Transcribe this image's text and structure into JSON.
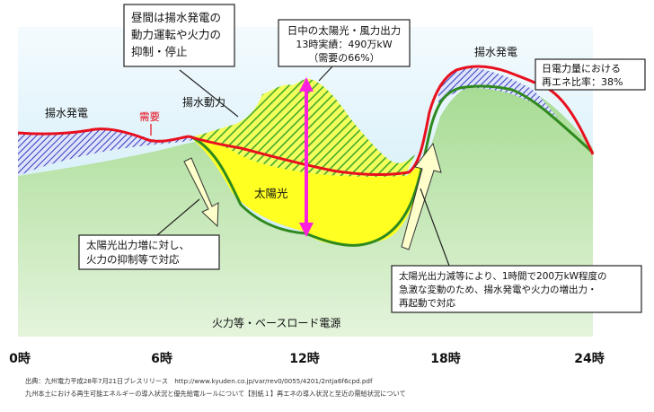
{
  "callouts": {
    "midday_pumped": {
      "lines": [
        "昼間は揚水発電の",
        "動力運転や火力の",
        "抑制・停止"
      ]
    },
    "solar_wind": {
      "lines": [
        "日中の太陽光・風力出力",
        "13時実績：490万kW",
        "（需要の66%）"
      ]
    },
    "daily_ratio": {
      "lines": [
        "日電力量における",
        "再エネ比率：38%"
      ]
    },
    "solar_increase": {
      "lines": [
        "太陽光出力増に対し、",
        "火力の抑制等で対応"
      ]
    },
    "solar_decrease": {
      "lines": [
        "太陽光出力減等により、1時間で200万kW程度の",
        "急激な変動のため、揚水発電や火力の増出力・",
        "再起動で対応"
      ]
    }
  },
  "labels": {
    "pumped_left": "揚水発電",
    "demand": "需要",
    "pumping_power": "揚水動力",
    "pumped_right": "揚水発電",
    "solar": "太陽光",
    "base_load": "火力等・ベースロード電源"
  },
  "time_axis": [
    "0時",
    "6時",
    "12時",
    "18時",
    "24時"
  ],
  "footer": {
    "source": "出典：九州電力平成28年7月21日プレスリリース　http://www.kyuden.co.jp/var/rev0/0055/4201/2ntja6f6cpd.pdf",
    "title": "九州本土における再生可能エネルギーの導入状況と優先給電ルールについて【別紙１】再エネの導入状況と至近の需給状況について"
  },
  "colors": {
    "base_green": "#8fcf7e",
    "sky_blue": "#cfeef8",
    "solar_yellow": "#ffff22",
    "demand_red": "#e8101e",
    "curve_green": "#2f8a1e",
    "arrow_magenta": "#ff22dd",
    "pumped_blue": "#2e3fbf"
  }
}
